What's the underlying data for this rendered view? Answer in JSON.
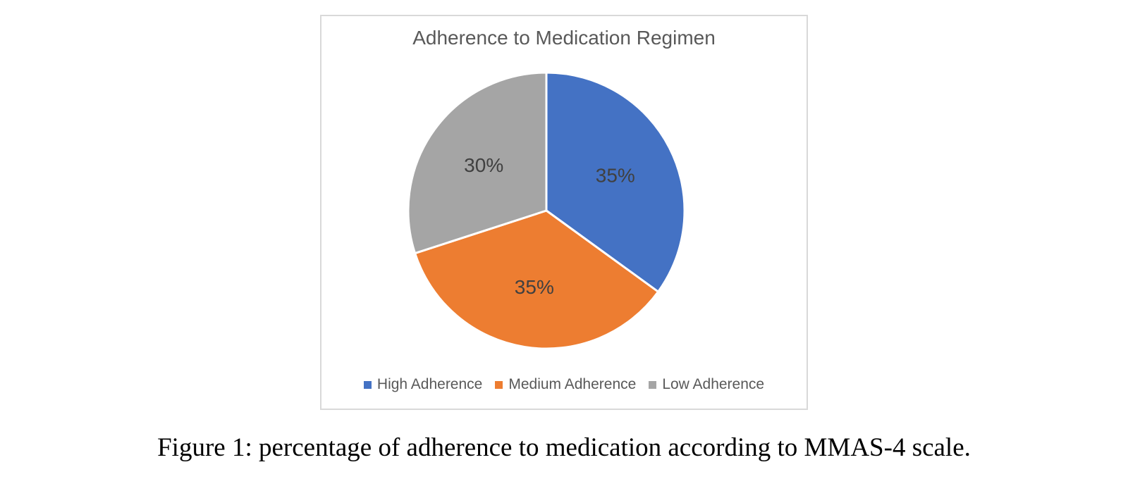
{
  "chart_data": {
    "type": "pie",
    "title": "Adherence to Medication Regimen",
    "categories": [
      "High Adherence",
      "Medium Adherence",
      "Low Adherence"
    ],
    "values": [
      35,
      35,
      30
    ],
    "labels": [
      "35%",
      "35%",
      "30%"
    ],
    "colors": [
      "#4472c4",
      "#ed7d31",
      "#a5a5a5"
    ],
    "start_angle": "12 o'clock",
    "direction": "clockwise",
    "legend_position": "bottom"
  },
  "caption": "Figure 1: percentage of adherence to medication according to MMAS-4 scale."
}
